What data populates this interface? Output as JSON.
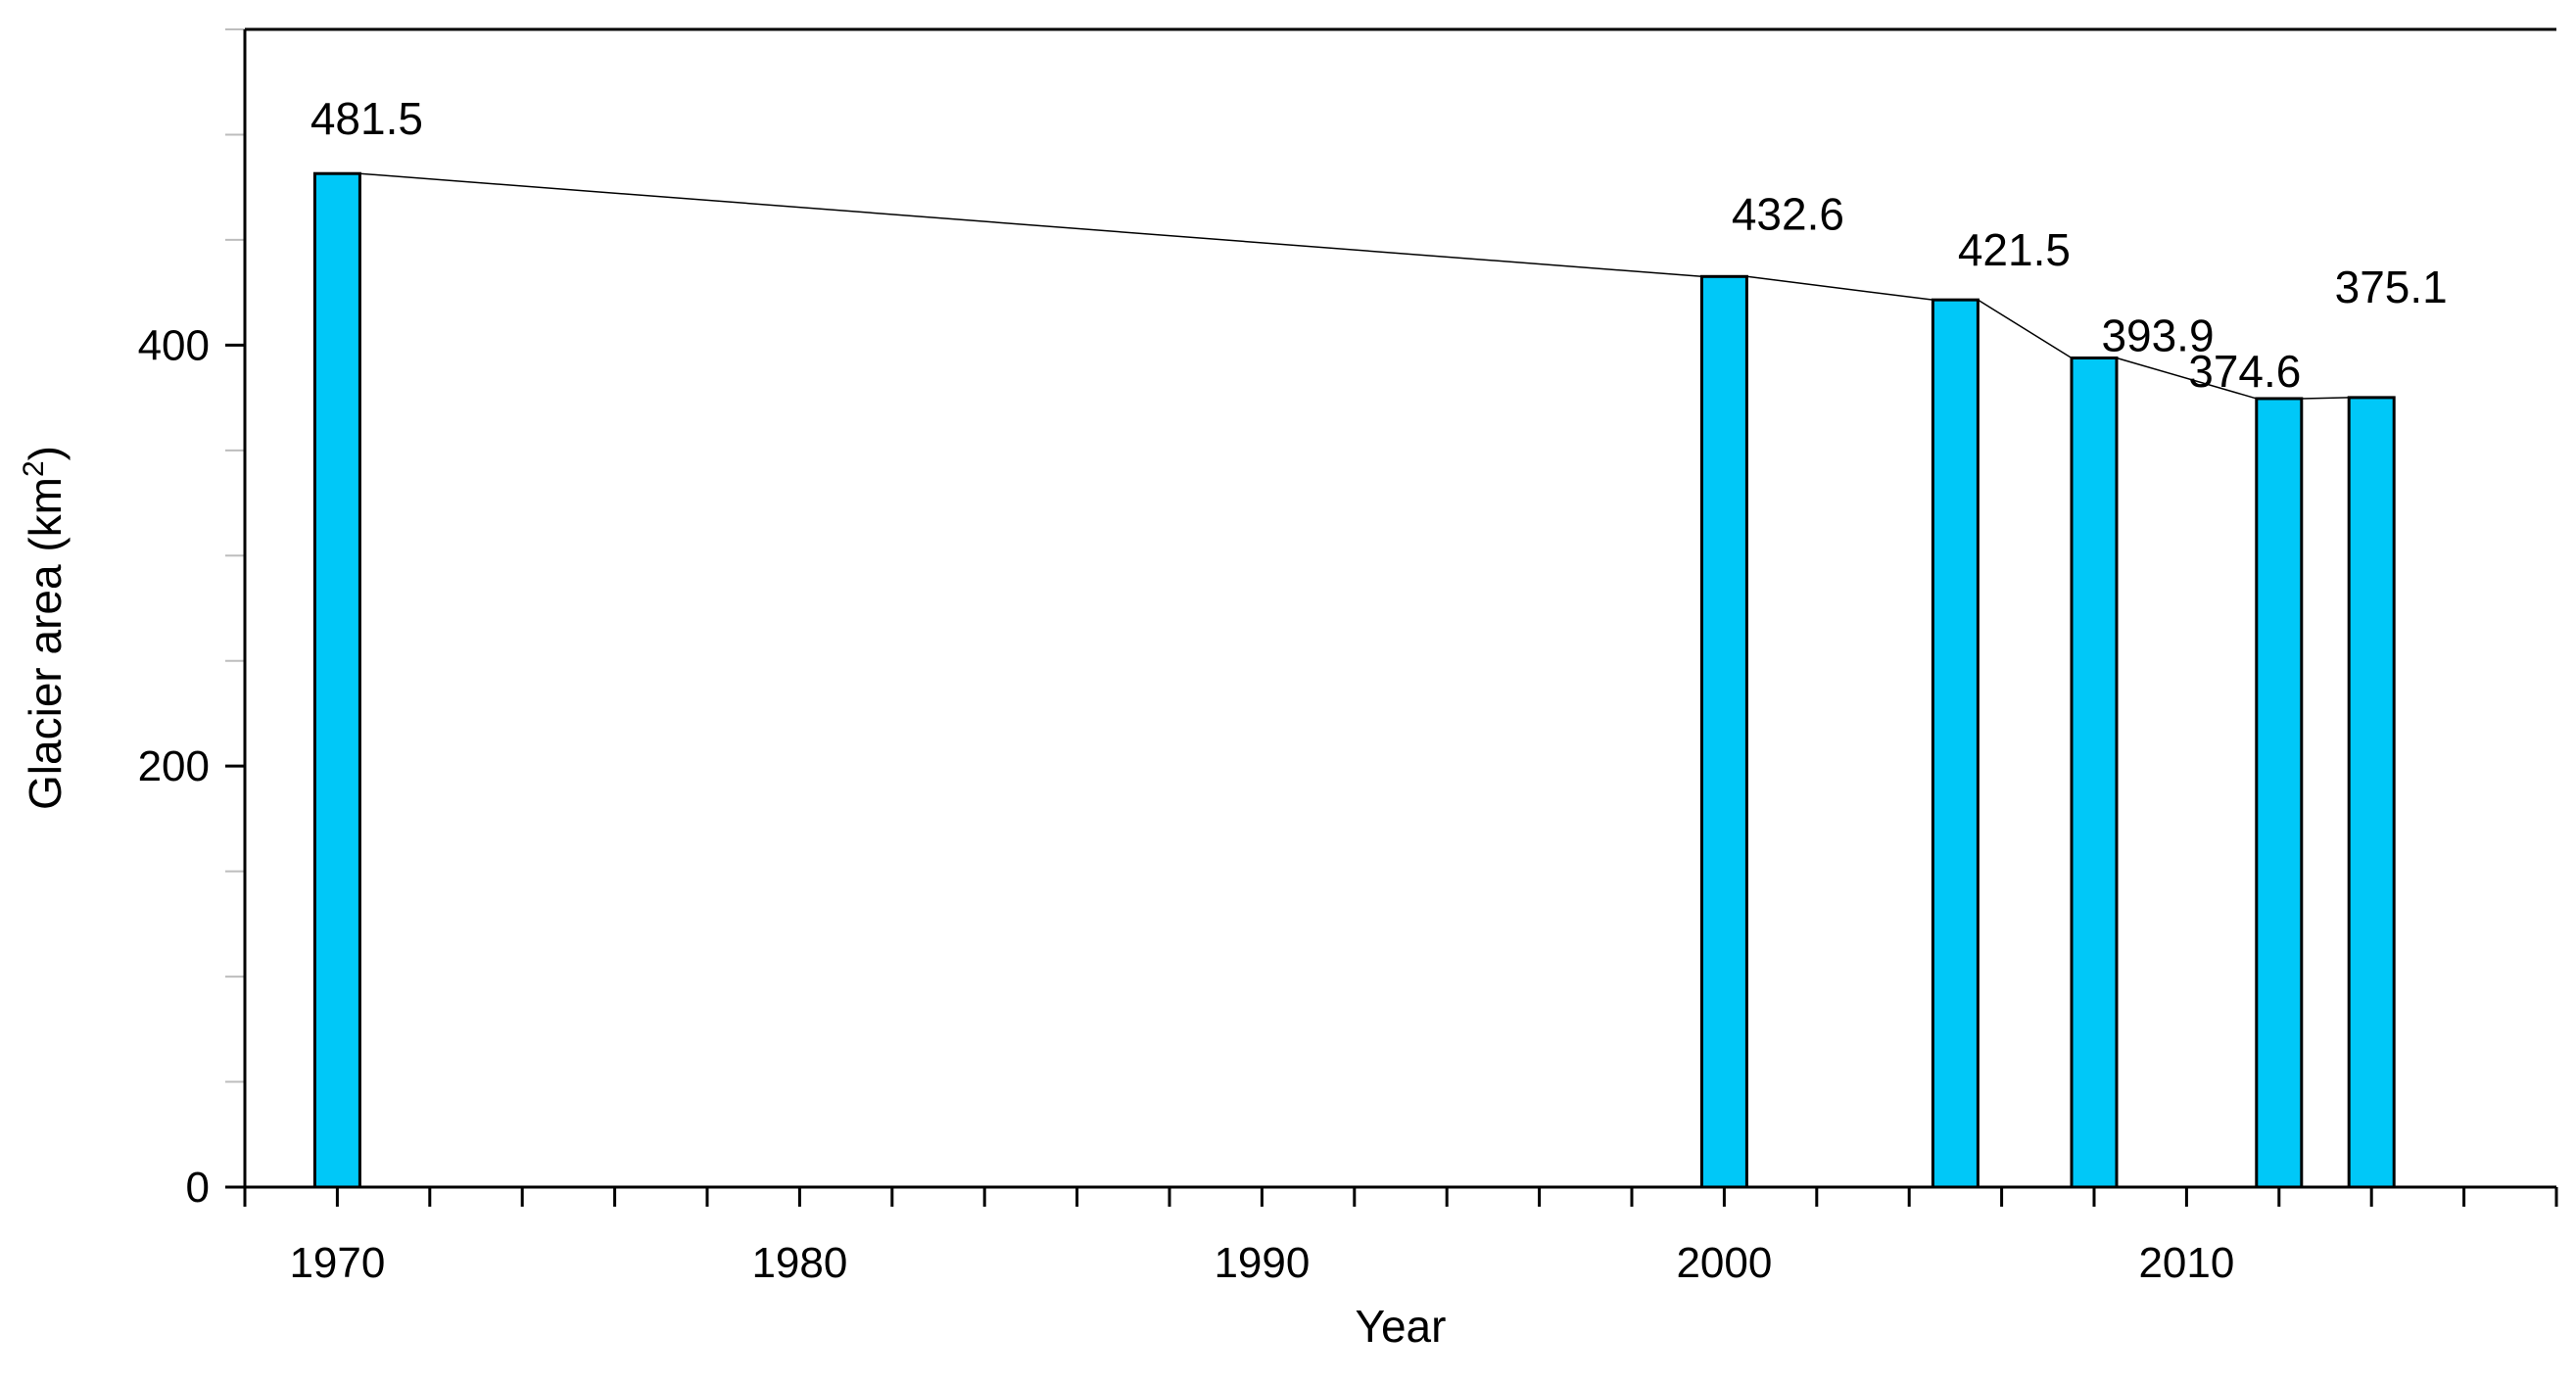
{
  "chart_data": {
    "type": "bar",
    "title": "",
    "xlabel": "Year",
    "ylabel_main": "Glacier area (km",
    "ylabel_sup": "2",
    "ylabel_end": ")",
    "x": [
      1970,
      2000,
      2005,
      2008,
      2012,
      2014
    ],
    "values": [
      481.5,
      432.6,
      421.5,
      393.9,
      374.6,
      375.1
    ],
    "data_labels": [
      "481.5",
      "432.6",
      "421.5",
      "393.9",
      "374.6",
      "375.1"
    ],
    "xlim": [
      1968,
      2018
    ],
    "ylim": [
      0,
      550
    ],
    "x_ticks": [
      1970,
      1980,
      1990,
      2000,
      2010
    ],
    "x_tick_labels": [
      "1970",
      "1980",
      "1990",
      "2000",
      "2010"
    ],
    "x_minor_step": 2,
    "y_ticks": [
      0,
      200,
      400
    ],
    "y_tick_labels": [
      "0",
      "200",
      "400"
    ],
    "y_minor_step": 50,
    "bar_color": "#00c8f8",
    "trend_line": true,
    "grid": false,
    "legend": "none"
  }
}
